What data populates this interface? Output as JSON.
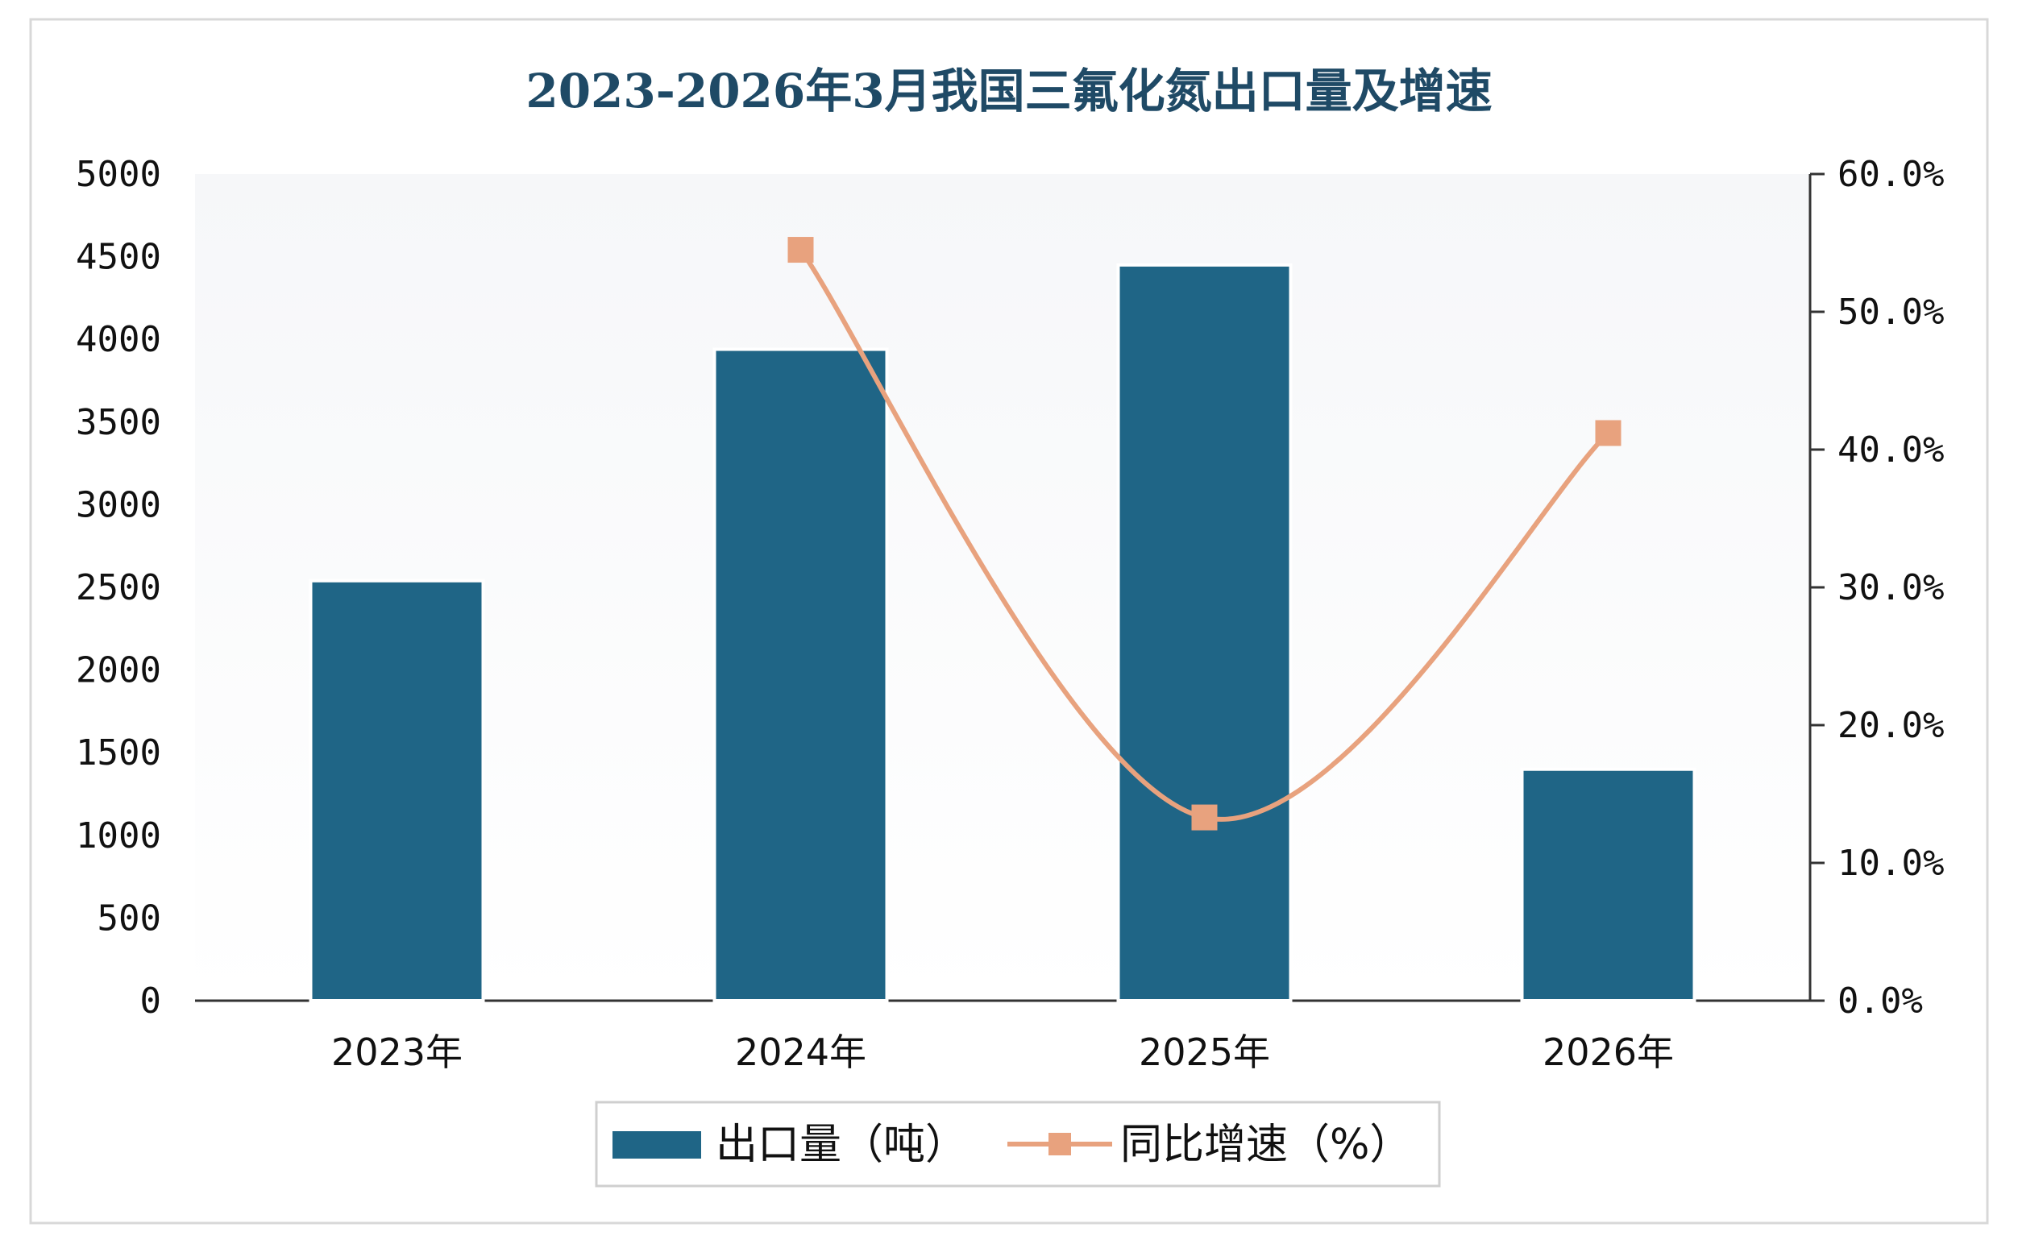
{
  "chart_data": {
    "type": "bar",
    "title": "2023-2026年3月我国三氟化氮出口量及增速",
    "categories": [
      "2023年",
      "2024年",
      "2025年",
      "2026年"
    ],
    "series": [
      {
        "name": "出口量（吨）",
        "type": "bar",
        "axis": "left",
        "color": "#1f6586",
        "values": [
          2540,
          3940,
          4450,
          1400
        ]
      },
      {
        "name": "同比增速（%）",
        "type": "line",
        "axis": "right",
        "color": "#e8a27e",
        "values": [
          null,
          54.5,
          13.3,
          41.2
        ]
      }
    ],
    "y_left": {
      "ylim": [
        0,
        5000
      ],
      "ticks": [
        "0",
        "500",
        "1000",
        "1500",
        "2000",
        "2500",
        "3000",
        "3500",
        "4000",
        "4500",
        "5000"
      ]
    },
    "y_right": {
      "ylim": [
        0,
        60
      ],
      "ticks": [
        "0.0%",
        "10.0%",
        "20.0%",
        "30.0%",
        "40.0%",
        "50.0%",
        "60.0%"
      ]
    },
    "legend": {
      "position": "bottom",
      "items": [
        "出口量（吨）",
        "同比增速（%）"
      ]
    },
    "grid": false
  }
}
